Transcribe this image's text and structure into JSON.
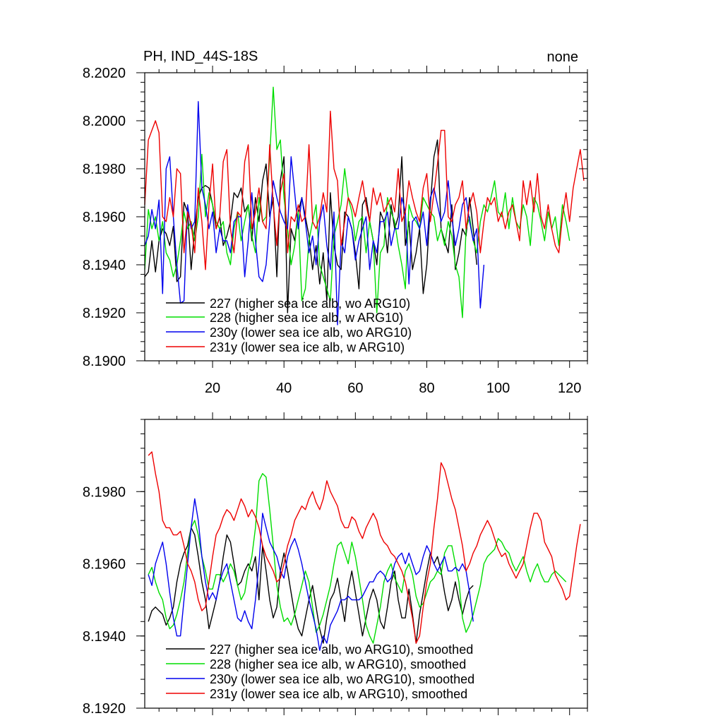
{
  "chart_data": [
    {
      "type": "line",
      "title_left": "PH, IND_44S-18S",
      "title_right": "none",
      "xlabel": "",
      "ylabel": "",
      "xlim": [
        1,
        125
      ],
      "ylim": [
        8.19,
        8.202
      ],
      "x_ticks": [
        20,
        40,
        60,
        80,
        100,
        120
      ],
      "y_ticks": [
        "8.1900",
        "8.1920",
        "8.1940",
        "8.1960",
        "8.1980",
        "8.2000",
        "8.2020"
      ],
      "legend": [
        "227 (higher sea ice alb, wo ARG10)",
        "228 (higher sea ice alb, w ARG10)",
        "230y (lower sea ice alb, wo ARG10)",
        "231y (lower sea ice alb, w ARG10)"
      ],
      "series": [
        {
          "name": "227",
          "color": "#000000",
          "x_start": 1,
          "values": [
            8.1935,
            8.1937,
            8.195,
            8.1937,
            8.195,
            8.1955,
            8.1953,
            8.1948,
            8.1956,
            8.1933,
            8.1935,
            8.1966,
            8.1962,
            8.1938,
            8.1955,
            8.1968,
            8.1972,
            8.1973,
            8.1972,
            8.1965,
            8.1955,
            8.196,
            8.1948,
            8.1952,
            8.1958,
            8.197,
            8.1968,
            8.1972,
            8.1962,
            8.1965,
            8.195,
            8.1968,
            8.1958,
            8.1975,
            8.1982,
            8.196,
            8.1968,
            8.1935,
            8.1975,
            8.1985,
            8.192,
            8.1955,
            8.195,
            8.1962,
            8.1968,
            8.196,
            8.1952,
            8.1938,
            8.1948,
            8.1932,
            8.1945,
            8.1925,
            8.197,
            8.1948,
            8.194,
            8.1938,
            8.1962,
            8.196,
            8.1955,
            8.1945,
            8.193,
            8.1965,
            8.1968,
            8.1958,
            8.195,
            8.194,
            8.1962,
            8.1958,
            8.1945,
            8.1965,
            8.1955,
            8.196,
            8.1985,
            8.1948,
            8.1958,
            8.1938,
            8.1945,
            8.1955,
            8.1928,
            8.194,
            8.1965,
            8.1985,
            8.1992,
            8.1955,
            8.195,
            8.1945,
            8.1965,
            8.1938,
            8.1945,
            8.1955,
            8.1952,
            8.1968,
            8.1955,
            8.194
          ]
        },
        {
          "name": "228",
          "color": "#00dd00",
          "x_start": 1,
          "values": [
            8.1938,
            8.1963,
            8.1955,
            8.196,
            8.195,
            8.1958,
            8.1945,
            8.1942,
            8.1935,
            8.194,
            8.195,
            8.1962,
            8.1955,
            8.1958,
            8.195,
            8.196,
            8.1986,
            8.196,
            8.197,
            8.1965,
            8.1958,
            8.1955,
            8.1958,
            8.1945,
            8.194,
            8.1955,
            8.1962,
            8.195,
            8.1958,
            8.1965,
            8.1952,
            8.1945,
            8.1968,
            8.1958,
            8.196,
            8.1985,
            8.2014,
            8.1988,
            8.1992,
            8.1968,
            8.1955,
            8.194,
            8.1948,
            8.1962,
            8.1925,
            8.193,
            8.195,
            8.1958,
            8.1965,
            8.194,
            8.1935,
            8.193,
            8.1925,
            8.1952,
            8.1958,
            8.1965,
            8.198,
            8.1968,
            8.1962,
            8.195,
            8.1958,
            8.196,
            8.1945,
            8.1958,
            8.195,
            8.192,
            8.1945,
            8.1948,
            8.1968,
            8.1962,
            8.1958,
            8.1948,
            8.194,
            8.193,
            8.1965,
            8.196,
            8.1958,
            8.1955,
            8.1968,
            8.1965,
            8.1962,
            8.196,
            8.195,
            8.1955,
            8.1948,
            8.1958,
            8.1952,
            8.194,
            8.1935,
            8.1918,
            8.1955,
            8.196,
            8.195,
            8.1945,
            8.1958,
            8.1965,
            8.1962,
            8.1968,
            8.1975,
            8.1962,
            8.196,
            8.197,
            8.1955,
            8.1968,
            8.1958,
            8.1955,
            8.1965,
            8.196,
            8.1948,
            8.1968,
            8.1965,
            8.1958,
            8.195,
            8.1962,
            8.1955,
            8.196,
            8.1948,
            8.1965,
            8.1958,
            8.195
          ]
        },
        {
          "name": "230y",
          "color": "#0000ee",
          "x_start": 1,
          "values": [
            8.1948,
            8.1952,
            8.1963,
            8.1955,
            8.1967,
            8.1928,
            8.198,
            8.1985,
            8.196,
            8.194,
            8.1924,
            8.1925,
            8.1965,
            8.1955,
            8.1958,
            8.2008,
            8.1972,
            8.1965,
            8.1955,
            8.1962,
            8.1945,
            8.1955,
            8.195,
            8.195,
            8.1945,
            8.1958,
            8.196,
            8.196,
            8.1935,
            8.195,
            8.197,
            8.195,
            8.1935,
            8.1933,
            8.194,
            8.1958,
            8.1975,
            8.1968,
            8.1962,
            8.1958,
            8.1955,
            8.1985,
            8.197,
            8.1955,
            8.1968,
            8.1958,
            8.1945,
            8.1952,
            8.194,
            8.1958,
            8.1965,
            8.1948,
            8.1938,
            8.1962,
            8.1915,
            8.195,
            8.1945,
            8.196,
            8.1955,
            8.1942,
            8.195,
            8.1955,
            8.196,
            8.1938,
            8.195,
            8.1945,
            8.1958,
            8.1958,
            8.1962,
            8.1948,
            8.1955,
            8.1955,
            8.1968,
            8.1962,
            8.1932,
            8.1958,
            8.196,
            8.1955,
            8.1962,
            8.1948,
            8.1968,
            8.1972,
            8.1965,
            8.1958,
            8.1962,
            8.1975,
            8.196,
            8.1948,
            8.1955,
            8.1965,
            8.1968,
            8.1958,
            8.195,
            8.1955,
            8.1922,
            8.194
          ]
        },
        {
          "name": "231y",
          "color": "#ee0000",
          "x_start": 1,
          "values": [
            8.1965,
            8.1992,
            8.1996,
            8.2,
            8.1995,
            8.196,
            8.1958,
            8.1968,
            8.196,
            8.198,
            8.1978,
            8.1945,
            8.1962,
            8.1957,
            8.1945,
            8.1972,
            8.1958,
            8.1938,
            8.1965,
            8.1982,
            8.1955,
            8.196,
            8.1983,
            8.1988,
            8.1955,
            8.1945,
            8.1962,
            8.196,
            8.1983,
            8.199,
            8.1955,
            8.1962,
            8.1972,
            8.1958,
            8.1955,
            8.199,
            8.1965,
            8.1948,
            8.197,
            8.1978,
            8.1945,
            8.196,
            8.1958,
            8.1965,
            8.1958,
            8.196,
            8.199,
            8.1958,
            8.1955,
            8.196,
            8.197,
            8.1962,
            8.2004,
            8.198,
            8.1975,
            8.1948,
            8.1958,
            8.1968,
            8.1965,
            8.196,
            8.1968,
            8.1975,
            8.1965,
            8.1958,
            8.1972,
            8.1965,
            8.197,
            8.1962,
            8.1965,
            8.1968,
            8.1962,
            8.198,
            8.1958,
            8.1962,
            8.1975,
            8.1968,
            8.1962,
            8.1958,
            8.1972,
            8.1978,
            8.1958,
            8.197,
            8.1982,
            8.1996,
            8.1996,
            8.196,
            8.1958,
            8.1965,
            8.1968,
            8.1975,
            8.1955,
            8.1965,
            8.197,
            8.1962,
            8.1945,
            8.1958,
            8.1968,
            8.1965,
            8.1968,
            8.1958,
            8.1962,
            8.1955,
            8.1962,
            8.1965,
            8.1958,
            8.195,
            8.1975,
            8.1965,
            8.1975,
            8.1962,
            8.1978,
            8.196,
            8.1955,
            8.1965,
            8.1955,
            8.1948,
            8.1945,
            8.196,
            8.197,
            8.1958,
            8.1972,
            8.198,
            8.1988,
            8.1975
          ]
        }
      ]
    },
    {
      "type": "line",
      "title": "",
      "xlabel": "",
      "ylabel": "",
      "xlim": [
        1,
        125
      ],
      "ylim": [
        8.192,
        8.2
      ],
      "x_ticks": [
        20,
        40,
        60,
        80,
        100,
        120
      ],
      "x_tick_labels_shown": false,
      "y_ticks": [
        "8.1920",
        "8.1940",
        "8.1960",
        "8.1980"
      ],
      "legend": [
        "227 (higher sea ice alb, wo ARG10), smoothed",
        "228 (higher sea ice alb, w ARG10), smoothed",
        "230y (lower sea ice alb, wo ARG10), smoothed",
        "231y (lower sea ice alb, w ARG10), smoothed"
      ],
      "series": [
        {
          "name": "227 smoothed",
          "color": "#000000",
          "x_start": 2,
          "values": [
            8.1944,
            8.1947,
            8.1948,
            8.1947,
            8.1946,
            8.1943,
            8.1945,
            8.1948,
            8.1955,
            8.196,
            8.1963,
            8.1965,
            8.197,
            8.1968,
            8.1962,
            8.1955,
            8.195,
            8.1942,
            8.1946,
            8.195,
            8.1955,
            8.1962,
            8.1968,
            8.1966,
            8.196,
            8.1954,
            8.1955,
            8.1958,
            8.196,
            8.1958,
            8.1962,
            8.195,
            8.1965,
            8.1958,
            8.195,
            8.1945,
            8.1948,
            8.1958,
            8.1963,
            8.1958,
            8.1952,
            8.1946,
            8.1942,
            8.194,
            8.1945,
            8.195,
            8.1954,
            8.1948,
            8.1942,
            8.1938,
            8.1945,
            8.195,
            8.1952,
            8.1956,
            8.195,
            8.1944,
            8.1953,
            8.1958,
            8.1952,
            8.1946,
            8.194,
            8.1945,
            8.195,
            8.1953,
            8.195,
            8.1944,
            8.1942,
            8.1948,
            8.1955,
            8.1958,
            8.195,
            8.1945,
            8.1945,
            8.1953,
            8.1946,
            8.1938,
            8.1946,
            8.1952,
            8.1958,
            8.1963,
            8.196,
            8.1962,
            8.1958,
            8.1952,
            8.1947,
            8.195,
            8.1955,
            8.195,
            8.1946,
            8.195,
            8.1953,
            8.1954
          ]
        },
        {
          "name": "228 smoothed",
          "color": "#00dd00",
          "x_start": 2,
          "values": [
            8.1957,
            8.1959,
            8.1955,
            8.1952,
            8.195,
            8.1945,
            8.1942,
            8.1943,
            8.1946,
            8.195,
            8.1955,
            8.1963,
            8.197,
            8.1972,
            8.1968,
            8.1962,
            8.1958,
            8.1953,
            8.1953,
            8.1957,
            8.1957,
            8.1955,
            8.1957,
            8.196,
            8.1958,
            8.1954,
            8.195,
            8.1952,
            8.1958,
            8.1962,
            8.197,
            8.1983,
            8.1985,
            8.1984,
            8.1975,
            8.1965,
            8.1954,
            8.1948,
            8.1944,
            8.1945,
            8.1943,
            8.1946,
            8.195,
            8.1954,
            8.1958,
            8.1955,
            8.1948,
            8.1941,
            8.1943,
            8.1946,
            8.195,
            8.1954,
            8.196,
            8.1965,
            8.1966,
            8.1963,
            8.196,
            8.1966,
            8.1962,
            8.1956,
            8.195,
            8.1943,
            8.194,
            8.1938,
            8.1943,
            8.1948,
            8.1955,
            8.1958,
            8.196,
            8.1956,
            8.1954,
            8.1952,
            8.1958,
            8.196,
            8.1957,
            8.1951,
            8.1948,
            8.1949,
            8.1952,
            8.1955,
            8.1956,
            8.1958,
            8.1957,
            8.1963,
            8.1965,
            8.1965,
            8.196,
            8.1955,
            8.1945,
            8.1941,
            8.1943,
            8.1946,
            8.195,
            8.1954,
            8.196,
            8.1962,
            8.1963,
            8.1964,
            8.1967,
            8.1966,
            8.1964,
            8.1963,
            8.196,
            8.1958,
            8.196,
            8.1962,
            8.1958,
            8.1955,
            8.1958,
            8.196,
            8.1957,
            8.1955,
            8.1955,
            8.1957,
            8.1958,
            8.1957,
            8.1956,
            8.1955
          ]
        },
        {
          "name": "230y smoothed",
          "color": "#0000ee",
          "x_start": 2,
          "values": [
            8.1957,
            8.1954,
            8.196,
            8.1963,
            8.1966,
            8.196,
            8.1952,
            8.1945,
            8.194,
            8.194,
            8.195,
            8.196,
            8.197,
            8.1978,
            8.1972,
            8.1962,
            8.1955,
            8.195,
            8.1952,
            8.195,
            8.1955,
            8.1958,
            8.196,
            8.1955,
            8.195,
            8.1945,
            8.1944,
            8.1947,
            8.1944,
            8.1942,
            8.195,
            8.196,
            8.1974,
            8.197,
            8.1966,
            8.1964,
            8.1962,
            8.1958,
            8.1956,
            8.1962,
            8.1965,
            8.1967,
            8.1964,
            8.196,
            8.1955,
            8.195,
            8.1946,
            8.1942,
            8.1936,
            8.194,
            8.1938,
            8.1943,
            8.1945,
            8.1947,
            8.195,
            8.195,
            8.1951,
            8.195,
            8.195,
            8.195,
            8.1951,
            8.1953,
            8.1955,
            8.1955,
            8.1957,
            8.1958,
            8.1957,
            8.1955,
            8.1956,
            8.196,
            8.1962,
            8.1963,
            8.196,
            8.1963,
            8.196,
            8.1957,
            8.1958,
            8.1962,
            8.1965,
            8.1963,
            8.196,
            8.1958,
            8.196,
            8.1962,
            8.1958,
            8.1958,
            8.1959,
            8.1958,
            8.196,
            8.1958,
            8.1952,
            8.1944
          ]
        },
        {
          "name": "231y smoothed",
          "color": "#ee0000",
          "x_start": 2,
          "values": [
            8.199,
            8.1991,
            8.1985,
            8.198,
            8.1972,
            8.197,
            8.197,
            8.1968,
            8.1968,
            8.1969,
            8.1965,
            8.196,
            8.1958,
            8.1955,
            8.195,
            8.1947,
            8.1948,
            8.1955,
            8.1962,
            8.1968,
            8.197,
            8.1973,
            8.1975,
            8.1974,
            8.1972,
            8.1975,
            8.1978,
            8.1976,
            8.1973,
            8.1975,
            8.1973,
            8.197,
            8.1965,
            8.1962,
            8.196,
            8.1958,
            8.1955,
            8.1956,
            8.196,
            8.1965,
            8.1968,
            8.1972,
            8.1974,
            8.1976,
            8.1975,
            8.1978,
            8.198,
            8.1977,
            8.1975,
            8.1978,
            8.1983,
            8.198,
            8.1978,
            8.1976,
            8.1972,
            8.197,
            8.197,
            8.1973,
            8.1972,
            8.1969,
            8.1967,
            8.197,
            8.1972,
            8.1974,
            8.1972,
            8.1968,
            8.1966,
            8.1965,
            8.1963,
            8.1962,
            8.196,
            8.1958,
            8.1955,
            8.195,
            8.1945,
            8.1938,
            8.194,
            8.1948,
            8.1955,
            8.196,
            8.197,
            8.1978,
            8.1988,
            8.1986,
            8.1982,
            8.1978,
            8.1975,
            8.197,
            8.1965,
            8.1958,
            8.196,
            8.1963,
            8.1965,
            8.1968,
            8.197,
            8.1972,
            8.197,
            8.1967,
            8.1964,
            8.1962,
            8.1963,
            8.196,
            8.1958,
            8.1956,
            8.1958,
            8.196,
            8.1965,
            8.197,
            8.1974,
            8.1974,
            8.1972,
            8.1966,
            8.1964,
            8.1962,
            8.1957,
            8.1955,
            8.1953,
            8.195,
            8.1951,
            8.1958,
            8.1965,
            8.1971
          ]
        }
      ]
    }
  ]
}
